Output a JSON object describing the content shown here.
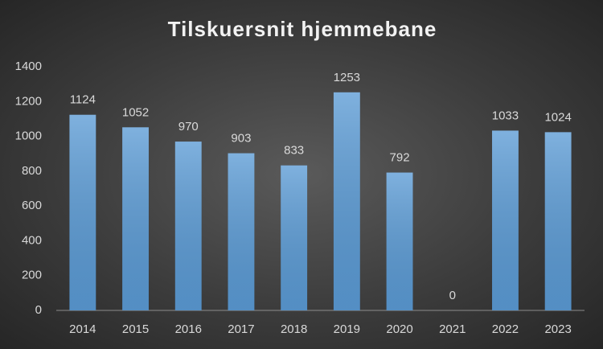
{
  "chart_data": {
    "type": "bar",
    "title": "Tilskuersnit hjemmebane",
    "categories": [
      "2014",
      "2015",
      "2016",
      "2017",
      "2018",
      "2019",
      "2020",
      "2021",
      "2022",
      "2023"
    ],
    "values": [
      1124,
      1052,
      970,
      903,
      833,
      1253,
      792,
      0,
      1033,
      1024
    ],
    "color": "#5b9bd5",
    "ylim": [
      0,
      1400
    ],
    "yticks": [
      0,
      200,
      400,
      600,
      800,
      1000,
      1200,
      1400
    ],
    "grid": false
  }
}
